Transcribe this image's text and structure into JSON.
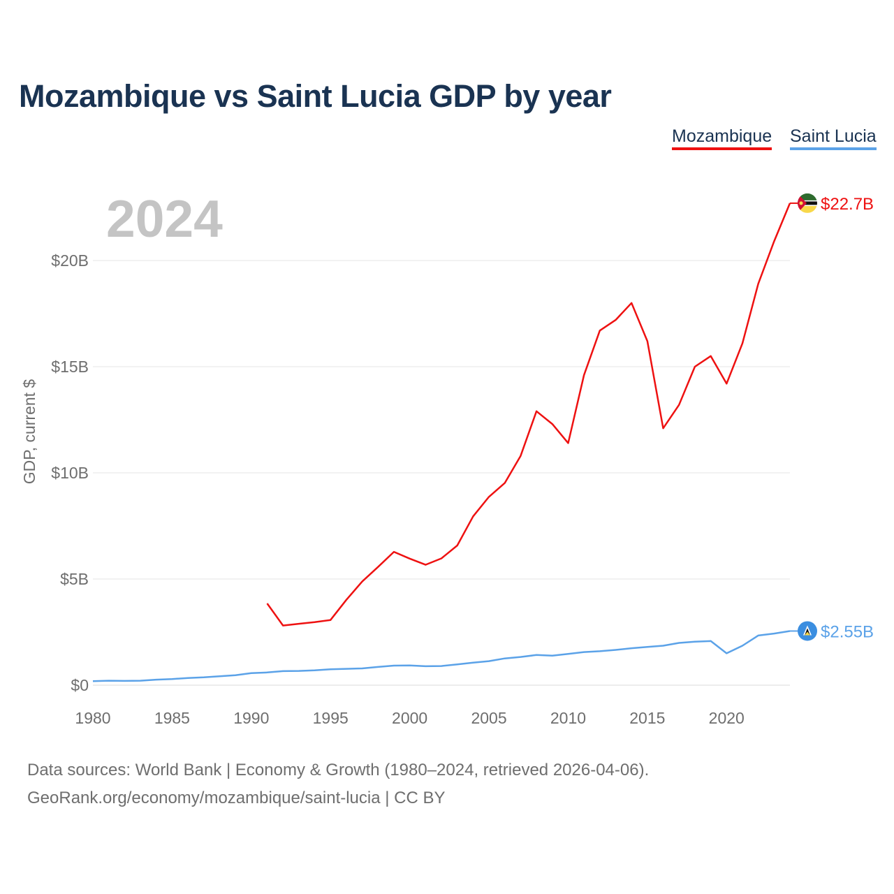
{
  "chart_data": {
    "type": "line",
    "title": "Mozambique vs Saint Lucia GDP by year",
    "xlabel": "",
    "ylabel": "GDP, current $",
    "year_label": "2024",
    "xlim": [
      1980,
      2024
    ],
    "ylim": [
      0,
      22.7
    ],
    "x_ticks": [
      1980,
      1985,
      1990,
      1995,
      2000,
      2005,
      2010,
      2015,
      2020
    ],
    "y_ticks": [
      {
        "value": 0,
        "label": "$0"
      },
      {
        "value": 5,
        "label": "$5B"
      },
      {
        "value": 10,
        "label": "$10B"
      },
      {
        "value": 15,
        "label": "$15B"
      },
      {
        "value": 20,
        "label": "$20B"
      }
    ],
    "grid": true,
    "legend_position": "top-right",
    "series": [
      {
        "name": "Mozambique",
        "color": "#ee1111",
        "end_label": "$22.7B",
        "flag_icon": "mozambique-flag-icon",
        "x": [
          1991,
          1992,
          1993,
          1994,
          1995,
          1996,
          1997,
          1998,
          1999,
          2000,
          2001,
          2002,
          2003,
          2004,
          2005,
          2006,
          2007,
          2008,
          2009,
          2010,
          2011,
          2012,
          2013,
          2014,
          2015,
          2016,
          2017,
          2018,
          2019,
          2020,
          2021,
          2022,
          2023,
          2024
        ],
        "values": [
          3.85,
          2.81,
          2.89,
          2.97,
          3.07,
          4.02,
          4.88,
          5.57,
          6.28,
          5.96,
          5.67,
          5.97,
          6.58,
          7.95,
          8.87,
          9.52,
          10.8,
          12.9,
          12.3,
          11.4,
          14.6,
          16.7,
          17.2,
          18.0,
          16.2,
          12.1,
          13.2,
          15.0,
          15.5,
          14.2,
          16.1,
          18.9,
          20.9,
          22.7
        ]
      },
      {
        "name": "Saint Lucia",
        "color": "#5ba2e8",
        "end_label": "$2.55B",
        "flag_icon": "saint-lucia-flag-icon",
        "x": [
          1980,
          1981,
          1982,
          1983,
          1984,
          1985,
          1986,
          1987,
          1988,
          1989,
          1990,
          1991,
          1992,
          1993,
          1994,
          1995,
          1996,
          1997,
          1998,
          1999,
          2000,
          2001,
          2002,
          2003,
          2004,
          2005,
          2006,
          2007,
          2008,
          2009,
          2010,
          2011,
          2012,
          2013,
          2014,
          2015,
          2016,
          2017,
          2018,
          2019,
          2020,
          2021,
          2022,
          2023,
          2024
        ],
        "values": [
          0.19,
          0.21,
          0.2,
          0.21,
          0.26,
          0.29,
          0.34,
          0.37,
          0.42,
          0.47,
          0.57,
          0.6,
          0.66,
          0.67,
          0.7,
          0.75,
          0.77,
          0.79,
          0.86,
          0.92,
          0.93,
          0.89,
          0.9,
          0.98,
          1.06,
          1.13,
          1.26,
          1.33,
          1.42,
          1.39,
          1.47,
          1.56,
          1.6,
          1.66,
          1.74,
          1.8,
          1.86,
          1.99,
          2.05,
          2.08,
          1.5,
          1.86,
          2.34,
          2.43,
          2.55
        ]
      }
    ]
  },
  "footer": {
    "line1": "Data sources: World Bank | Economy & Growth (1980–2024, retrieved 2026-04-06).",
    "line2": "GeoRank.org/economy/mozambique/saint-lucia | CC BY"
  }
}
